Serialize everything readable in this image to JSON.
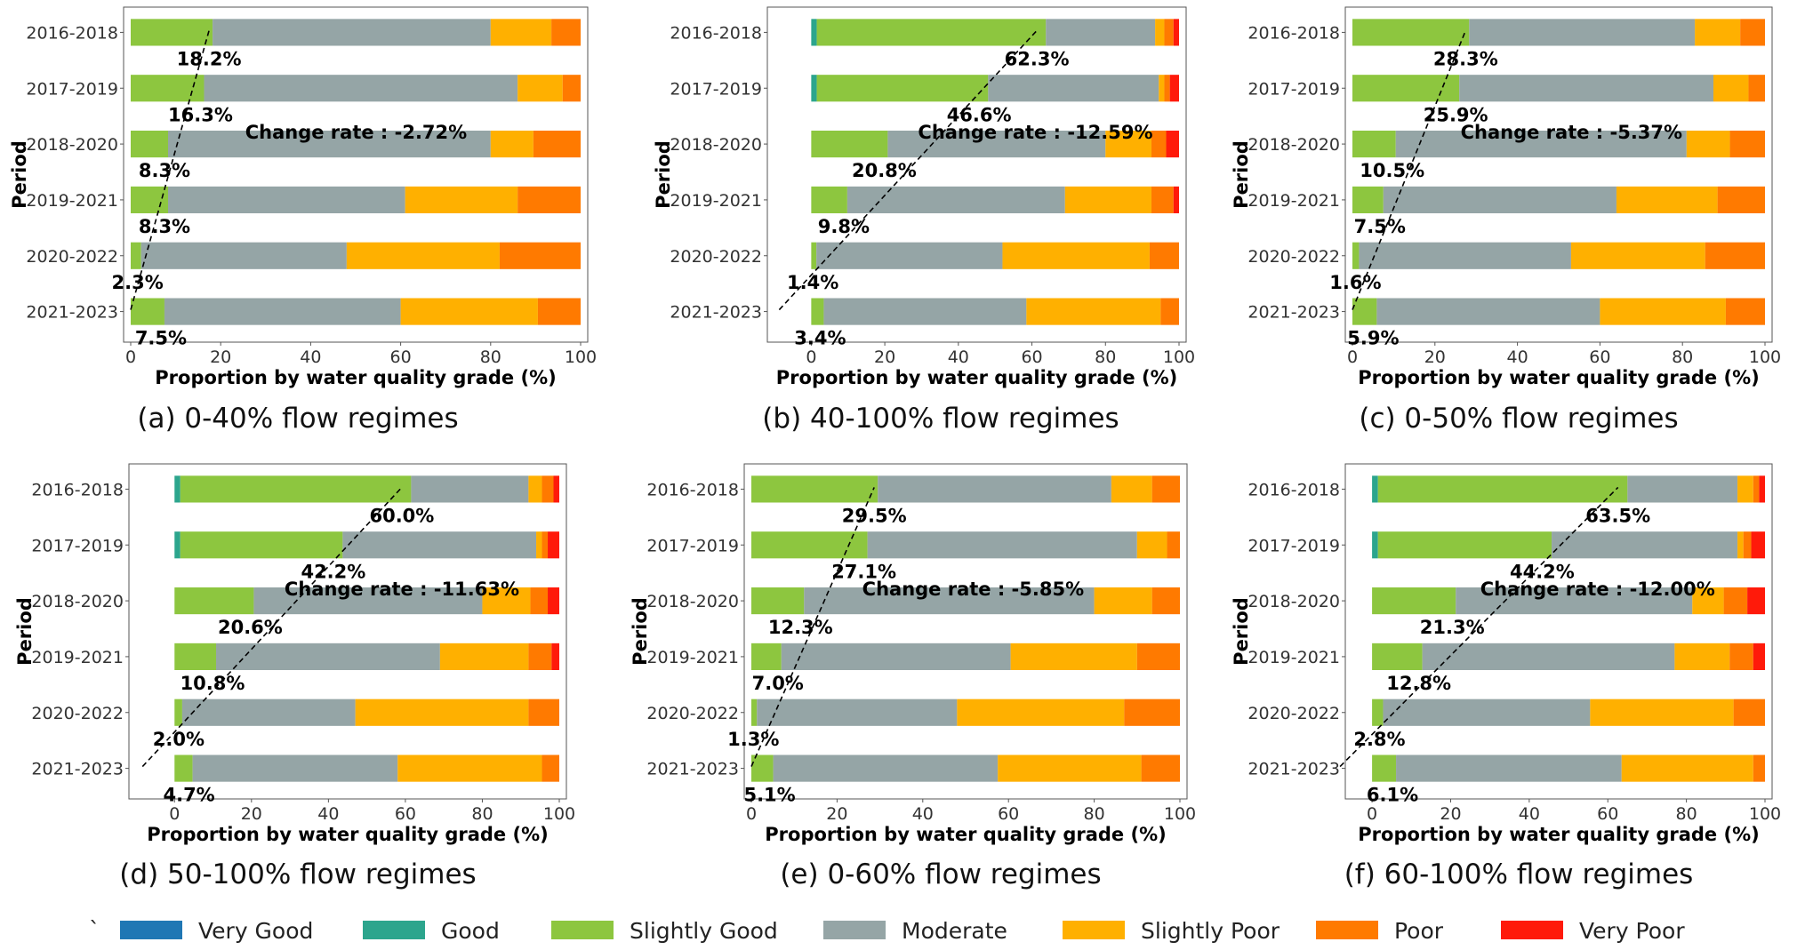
{
  "categories_legend": [
    "Very Good",
    "Good",
    "Slightly Good",
    "Moderate",
    "Slightly Poor",
    "Poor",
    "Very Poor"
  ],
  "colors": [
    "#1f77b4",
    "#2ca58d",
    "#8dc63f",
    "#95a5a6",
    "#ffb000",
    "#ff7a00",
    "#ff1a0a"
  ],
  "legend_prefix": "`",
  "chart_data": [
    {
      "type": "bar",
      "orientation": "horizontal",
      "stacked": true,
      "caption": "(a) 0-40% flow regimes",
      "xlabel": "Proportion by water quality grade (%)",
      "ylabel": "Period",
      "xlim": [
        0,
        100
      ],
      "xticks": [
        "0",
        "20",
        "40",
        "60",
        "80",
        "100"
      ],
      "categories": [
        "2016-2018",
        "2017-2019",
        "2018-2020",
        "2019-2021",
        "2020-2022",
        "2021-2023"
      ],
      "series": [
        {
          "name": "Very Good",
          "values": [
            0,
            0,
            0,
            0,
            0,
            0
          ]
        },
        {
          "name": "Good",
          "values": [
            0,
            0,
            0,
            0,
            0,
            0
          ]
        },
        {
          "name": "Slightly Good",
          "values": [
            18.2,
            16.3,
            8.3,
            8.3,
            2.3,
            7.5
          ]
        },
        {
          "name": "Moderate",
          "values": [
            61.8,
            69.7,
            71.7,
            52.7,
            45.7,
            52.5
          ]
        },
        {
          "name": "Slightly Poor",
          "values": [
            13.5,
            10.0,
            9.5,
            25.0,
            34.0,
            30.5
          ]
        },
        {
          "name": "Poor",
          "values": [
            6.5,
            4.0,
            10.5,
            14.0,
            18.0,
            9.5
          ]
        },
        {
          "name": "Very Poor",
          "values": [
            0,
            0,
            0,
            0,
            0,
            0
          ]
        }
      ],
      "labels": [
        "18.2%",
        "16.3%",
        "8.3%",
        "8.3%",
        "2.3%",
        "7.5%"
      ],
      "change_rate": "Change rate : -2.72%"
    },
    {
      "type": "bar",
      "orientation": "horizontal",
      "stacked": true,
      "caption": "(b) 40-100% flow regimes",
      "xlabel": "Proportion by water quality grade (%)",
      "ylabel": "Period",
      "xlim": [
        -10,
        100
      ],
      "xticks": [
        "0",
        "20",
        "40",
        "60",
        "80",
        "100"
      ],
      "categories": [
        "2016-2018",
        "2017-2019",
        "2018-2020",
        "2019-2021",
        "2020-2022",
        "2021-2023"
      ],
      "series": [
        {
          "name": "Very Good",
          "values": [
            0,
            0,
            0,
            0,
            0,
            0
          ]
        },
        {
          "name": "Good",
          "values": [
            1.5,
            1.5,
            0,
            0,
            0,
            0
          ]
        },
        {
          "name": "Slightly Good",
          "values": [
            62.3,
            46.6,
            20.8,
            9.8,
            1.4,
            3.4
          ]
        },
        {
          "name": "Moderate",
          "values": [
            29.7,
            46.4,
            59.2,
            59.2,
            50.6,
            55.1
          ]
        },
        {
          "name": "Slightly Poor",
          "values": [
            2.5,
            1.5,
            12.5,
            23.5,
            40.0,
            36.5
          ]
        },
        {
          "name": "Poor",
          "values": [
            2.5,
            1.5,
            4.0,
            6.0,
            8.0,
            5.0
          ]
        },
        {
          "name": "Very Poor",
          "values": [
            1.5,
            2.5,
            3.5,
            1.5,
            0,
            0
          ]
        }
      ],
      "labels": [
        "62.3%",
        "46.6%",
        "20.8%",
        "9.8%",
        "1.4%",
        "3.4%"
      ],
      "change_rate": "Change rate : -12.59%"
    },
    {
      "type": "bar",
      "orientation": "horizontal",
      "stacked": true,
      "caption": "(c) 0-50% flow regimes",
      "xlabel": "Proportion by water quality grade (%)",
      "ylabel": "Period",
      "xlim": [
        0,
        100
      ],
      "xticks": [
        "0",
        "20",
        "40",
        "60",
        "80",
        "100"
      ],
      "categories": [
        "2016-2018",
        "2017-2019",
        "2018-2020",
        "2019-2021",
        "2020-2022",
        "2021-2023"
      ],
      "series": [
        {
          "name": "Very Good",
          "values": [
            0,
            0,
            0,
            0,
            0,
            0
          ]
        },
        {
          "name": "Good",
          "values": [
            0,
            0,
            0,
            0,
            0,
            0
          ]
        },
        {
          "name": "Slightly Good",
          "values": [
            28.3,
            25.9,
            10.5,
            7.5,
            1.6,
            5.9
          ]
        },
        {
          "name": "Moderate",
          "values": [
            54.7,
            61.6,
            70.5,
            56.5,
            51.4,
            54.1
          ]
        },
        {
          "name": "Slightly Poor",
          "values": [
            11.0,
            8.5,
            10.5,
            24.5,
            32.5,
            30.5
          ]
        },
        {
          "name": "Poor",
          "values": [
            6.0,
            4.0,
            8.5,
            11.5,
            14.5,
            9.5
          ]
        },
        {
          "name": "Very Poor",
          "values": [
            0,
            0,
            0,
            0,
            0,
            0
          ]
        }
      ],
      "labels": [
        "28.3%",
        "25.9%",
        "10.5%",
        "7.5%",
        "1.6%",
        "5.9%"
      ],
      "change_rate": "Change rate : -5.37%"
    },
    {
      "type": "bar",
      "orientation": "horizontal",
      "stacked": true,
      "caption": "(d) 50-100% flow regimes",
      "xlabel": "Proportion by water quality grade (%)",
      "ylabel": "Period",
      "xlim": [
        -10,
        100
      ],
      "xticks": [
        "0",
        "20",
        "40",
        "60",
        "80",
        "100"
      ],
      "categories": [
        "2016-2018",
        "2017-2019",
        "2018-2020",
        "2019-2021",
        "2020-2022",
        "2021-2023"
      ],
      "series": [
        {
          "name": "Very Good",
          "values": [
            0,
            0,
            0,
            0,
            0,
            0
          ]
        },
        {
          "name": "Good",
          "values": [
            1.5,
            1.5,
            0,
            0,
            0,
            0
          ]
        },
        {
          "name": "Slightly Good",
          "values": [
            60.0,
            42.2,
            20.6,
            10.8,
            2.0,
            4.7
          ]
        },
        {
          "name": "Moderate",
          "values": [
            30.5,
            50.3,
            59.4,
            58.2,
            45.0,
            53.3
          ]
        },
        {
          "name": "Slightly Poor",
          "values": [
            3.5,
            1.5,
            12.5,
            23.0,
            45.0,
            37.5
          ]
        },
        {
          "name": "Poor",
          "values": [
            3.0,
            1.5,
            4.5,
            6.0,
            8.0,
            4.5
          ]
        },
        {
          "name": "Very Poor",
          "values": [
            1.5,
            3.0,
            3.0,
            2.0,
            0,
            0
          ]
        }
      ],
      "labels": [
        "60.0%",
        "42.2%",
        "20.6%",
        "10.8%",
        "2.0%",
        "4.7%"
      ],
      "change_rate": "Change rate : -11.63%"
    },
    {
      "type": "bar",
      "orientation": "horizontal",
      "stacked": true,
      "caption": "(e) 0-60% flow regimes",
      "xlabel": "Proportion by water quality grade (%)",
      "ylabel": "Period",
      "xlim": [
        0,
        100
      ],
      "xticks": [
        "0",
        "20",
        "40",
        "60",
        "80",
        "100"
      ],
      "categories": [
        "2016-2018",
        "2017-2019",
        "2018-2020",
        "2019-2021",
        "2020-2022",
        "2021-2023"
      ],
      "series": [
        {
          "name": "Very Good",
          "values": [
            0,
            0,
            0,
            0,
            0,
            0
          ]
        },
        {
          "name": "Good",
          "values": [
            0,
            0,
            0,
            0,
            0,
            0
          ]
        },
        {
          "name": "Slightly Good",
          "values": [
            29.5,
            27.1,
            12.3,
            7.0,
            1.3,
            5.1
          ]
        },
        {
          "name": "Moderate",
          "values": [
            54.5,
            62.9,
            67.7,
            53.5,
            46.7,
            52.4
          ]
        },
        {
          "name": "Slightly Poor",
          "values": [
            9.5,
            7.0,
            13.5,
            29.5,
            39.0,
            33.5
          ]
        },
        {
          "name": "Poor",
          "values": [
            6.5,
            3.0,
            6.5,
            10.0,
            13.0,
            9.0
          ]
        },
        {
          "name": "Very Poor",
          "values": [
            0,
            0,
            0,
            0,
            0,
            0
          ]
        }
      ],
      "labels": [
        "29.5%",
        "27.1%",
        "12.3%",
        "7.0%",
        "1.3%",
        "5.1%"
      ],
      "change_rate": "Change rate : -5.85%"
    },
    {
      "type": "bar",
      "orientation": "horizontal",
      "stacked": true,
      "caption": "(f) 60-100% flow regimes",
      "xlabel": "Proportion by water quality grade (%)",
      "ylabel": "Period",
      "xlim": [
        -5,
        100
      ],
      "xticks": [
        "0",
        "20",
        "40",
        "60",
        "80",
        "100"
      ],
      "categories": [
        "2016-2018",
        "2017-2019",
        "2018-2020",
        "2019-2021",
        "2020-2022",
        "2021-2023"
      ],
      "series": [
        {
          "name": "Very Good",
          "values": [
            0,
            0,
            0,
            0,
            0,
            0
          ]
        },
        {
          "name": "Good",
          "values": [
            1.5,
            1.5,
            0,
            0,
            0,
            0
          ]
        },
        {
          "name": "Slightly Good",
          "values": [
            63.5,
            44.2,
            21.3,
            12.8,
            2.8,
            6.1
          ]
        },
        {
          "name": "Moderate",
          "values": [
            28.0,
            47.3,
            60.2,
            64.2,
            52.7,
            57.4
          ]
        },
        {
          "name": "Slightly Poor",
          "values": [
            4.0,
            1.5,
            8.0,
            14.0,
            36.5,
            33.5
          ]
        },
        {
          "name": "Poor",
          "values": [
            1.5,
            2.0,
            6.0,
            6.0,
            8.0,
            3.0
          ]
        },
        {
          "name": "Very Poor",
          "values": [
            1.5,
            3.5,
            4.5,
            3.0,
            0,
            0
          ]
        }
      ],
      "labels": [
        "63.5%",
        "44.2%",
        "21.3%",
        "12.8%",
        "2.8%",
        "6.1%"
      ],
      "change_rate": "Change rate : -12.00%"
    }
  ]
}
